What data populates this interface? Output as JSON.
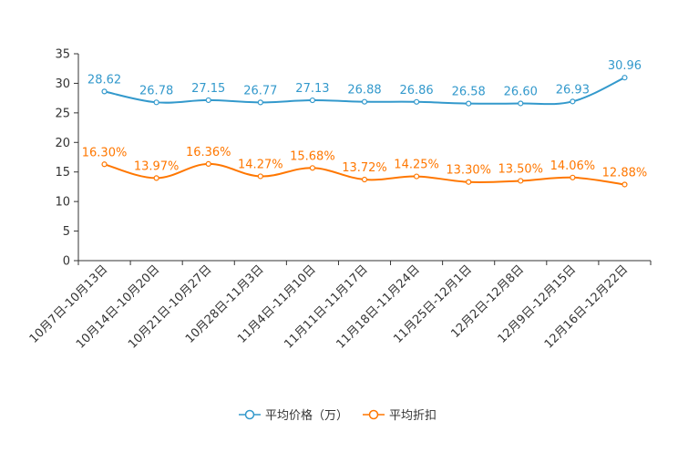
{
  "chart_data": {
    "type": "line",
    "categories": [
      "10月7日-10月13日",
      "10月14日-10月20日",
      "10月21日-10月27日",
      "10月28日-11月3日",
      "11月4日-11月10日",
      "11月11日-11月17日",
      "11月18日-11月24日",
      "11月25日-12月1日",
      "12月2日-12月8日",
      "12月9日-12月15日",
      "12月16日-12月22日"
    ],
    "series": [
      {
        "name": "平均价格（万）",
        "color": "#3399cc",
        "values": [
          28.62,
          26.78,
          27.15,
          26.77,
          27.13,
          26.88,
          26.86,
          26.58,
          26.6,
          26.93,
          30.96
        ],
        "labels": [
          "28.62",
          "26.78",
          "27.15",
          "26.77",
          "27.13",
          "26.88",
          "26.86",
          "26.58",
          "26.60",
          "26.93",
          "30.96"
        ]
      },
      {
        "name": "平均折扣",
        "color": "#ff7700",
        "values": [
          16.3,
          13.97,
          16.36,
          14.27,
          15.68,
          13.72,
          14.25,
          13.3,
          13.5,
          14.06,
          12.88
        ],
        "labels": [
          "16.30%",
          "13.97%",
          "16.36%",
          "14.27%",
          "15.68%",
          "13.72%",
          "14.25%",
          "13.30%",
          "13.50%",
          "14.06%",
          "12.88%"
        ]
      }
    ],
    "y_ticks": [
      "0",
      "5",
      "10",
      "15",
      "20",
      "25",
      "30",
      "35"
    ],
    "ylim": [
      0,
      35
    ],
    "title": "",
    "xlabel": "",
    "ylabel": "",
    "legend_position": "bottom-center",
    "grid": false
  }
}
